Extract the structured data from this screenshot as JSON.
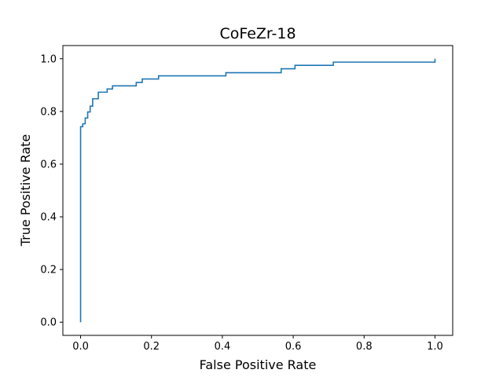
{
  "chart_data": {
    "type": "line",
    "title": "CoFeZr-18",
    "xlabel": "False Positive Rate",
    "ylabel": "True Positive Rate",
    "xlim": [
      -0.05,
      1.05
    ],
    "ylim": [
      -0.05,
      1.05
    ],
    "xticks": [
      0.0,
      0.2,
      0.4,
      0.6,
      0.8,
      1.0
    ],
    "yticks": [
      0.0,
      0.2,
      0.4,
      0.6,
      0.8,
      1.0
    ],
    "xtick_labels": [
      "0.0",
      "0.2",
      "0.4",
      "0.6",
      "0.8",
      "1.0"
    ],
    "ytick_labels": [
      "0.0",
      "0.2",
      "0.4",
      "0.6",
      "0.8",
      "1.0"
    ],
    "grid": false,
    "series": [
      {
        "color": "#1f77b4",
        "x": [
          0.0,
          0.0,
          0.006,
          0.006,
          0.013,
          0.013,
          0.02,
          0.02,
          0.027,
          0.027,
          0.034,
          0.034,
          0.05,
          0.05,
          0.075,
          0.075,
          0.09,
          0.09,
          0.157,
          0.157,
          0.174,
          0.174,
          0.22,
          0.22,
          0.41,
          0.41,
          0.566,
          0.566,
          0.605,
          0.605,
          0.713,
          0.713,
          1.0,
          1.0
        ],
        "y": [
          0.0,
          0.742,
          0.742,
          0.753,
          0.753,
          0.775,
          0.775,
          0.798,
          0.798,
          0.82,
          0.82,
          0.848,
          0.848,
          0.873,
          0.873,
          0.885,
          0.885,
          0.897,
          0.897,
          0.91,
          0.91,
          0.923,
          0.923,
          0.935,
          0.935,
          0.947,
          0.947,
          0.962,
          0.962,
          0.975,
          0.975,
          0.987,
          0.987,
          1.0
        ]
      }
    ]
  }
}
